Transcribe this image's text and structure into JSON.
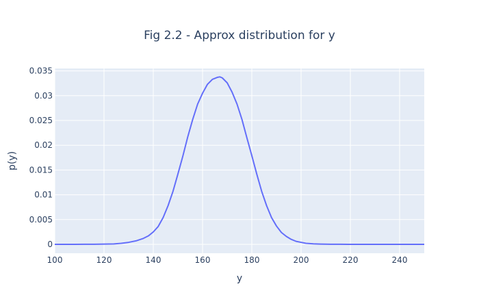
{
  "chart_data": {
    "type": "line",
    "title": "Fig 2.2 - Approx distribution for y",
    "xlabel": "y",
    "ylabel": "p(y)",
    "xlim": [
      100,
      250
    ],
    "ylim": [
      -0.0018,
      0.0355
    ],
    "x_ticks": [
      100,
      120,
      140,
      160,
      180,
      200,
      220,
      240
    ],
    "x_tick_labels": [
      "100",
      "120",
      "140",
      "160",
      "180",
      "200",
      "220",
      "240"
    ],
    "y_ticks": [
      0,
      0.005,
      0.01,
      0.015,
      0.02,
      0.025,
      0.03,
      0.035
    ],
    "y_tick_labels": [
      "0",
      "0.005",
      "0.01",
      "0.015",
      "0.02",
      "0.025",
      "0.03",
      "0.035"
    ],
    "grid": true,
    "colors": {
      "plot_bg": "#e5ecf6",
      "line": "#636efa",
      "text": "#2a3f5f"
    },
    "series": [
      {
        "x": [
          100,
          104,
          108,
          112,
          116,
          120,
          124,
          127,
          130,
          133,
          136,
          138,
          140,
          142,
          144,
          146,
          148,
          150,
          152,
          154,
          156,
          158,
          160,
          162,
          164,
          166,
          167,
          168,
          170,
          172,
          174,
          176,
          178,
          180,
          182,
          184,
          186,
          188,
          190,
          192,
          194,
          196,
          198,
          200,
          202,
          205,
          208,
          212,
          216,
          220,
          225,
          230,
          240,
          250
        ],
        "y": [
          0,
          0,
          0,
          1e-05,
          2e-05,
          4e-05,
          8e-05,
          0.0002,
          0.0004,
          0.0007,
          0.0012,
          0.0017,
          0.0025,
          0.0036,
          0.0054,
          0.0078,
          0.0107,
          0.0142,
          0.0178,
          0.0217,
          0.0252,
          0.0283,
          0.0305,
          0.0323,
          0.0333,
          0.0337,
          0.0338,
          0.0336,
          0.0326,
          0.0307,
          0.0283,
          0.0252,
          0.0215,
          0.0179,
          0.0142,
          0.0107,
          0.0078,
          0.0054,
          0.0037,
          0.0024,
          0.0016,
          0.001,
          0.0006,
          0.0004,
          0.0002,
          0.0001,
          5e-05,
          2e-05,
          1e-05,
          0,
          0,
          0,
          0,
          0
        ]
      }
    ]
  }
}
